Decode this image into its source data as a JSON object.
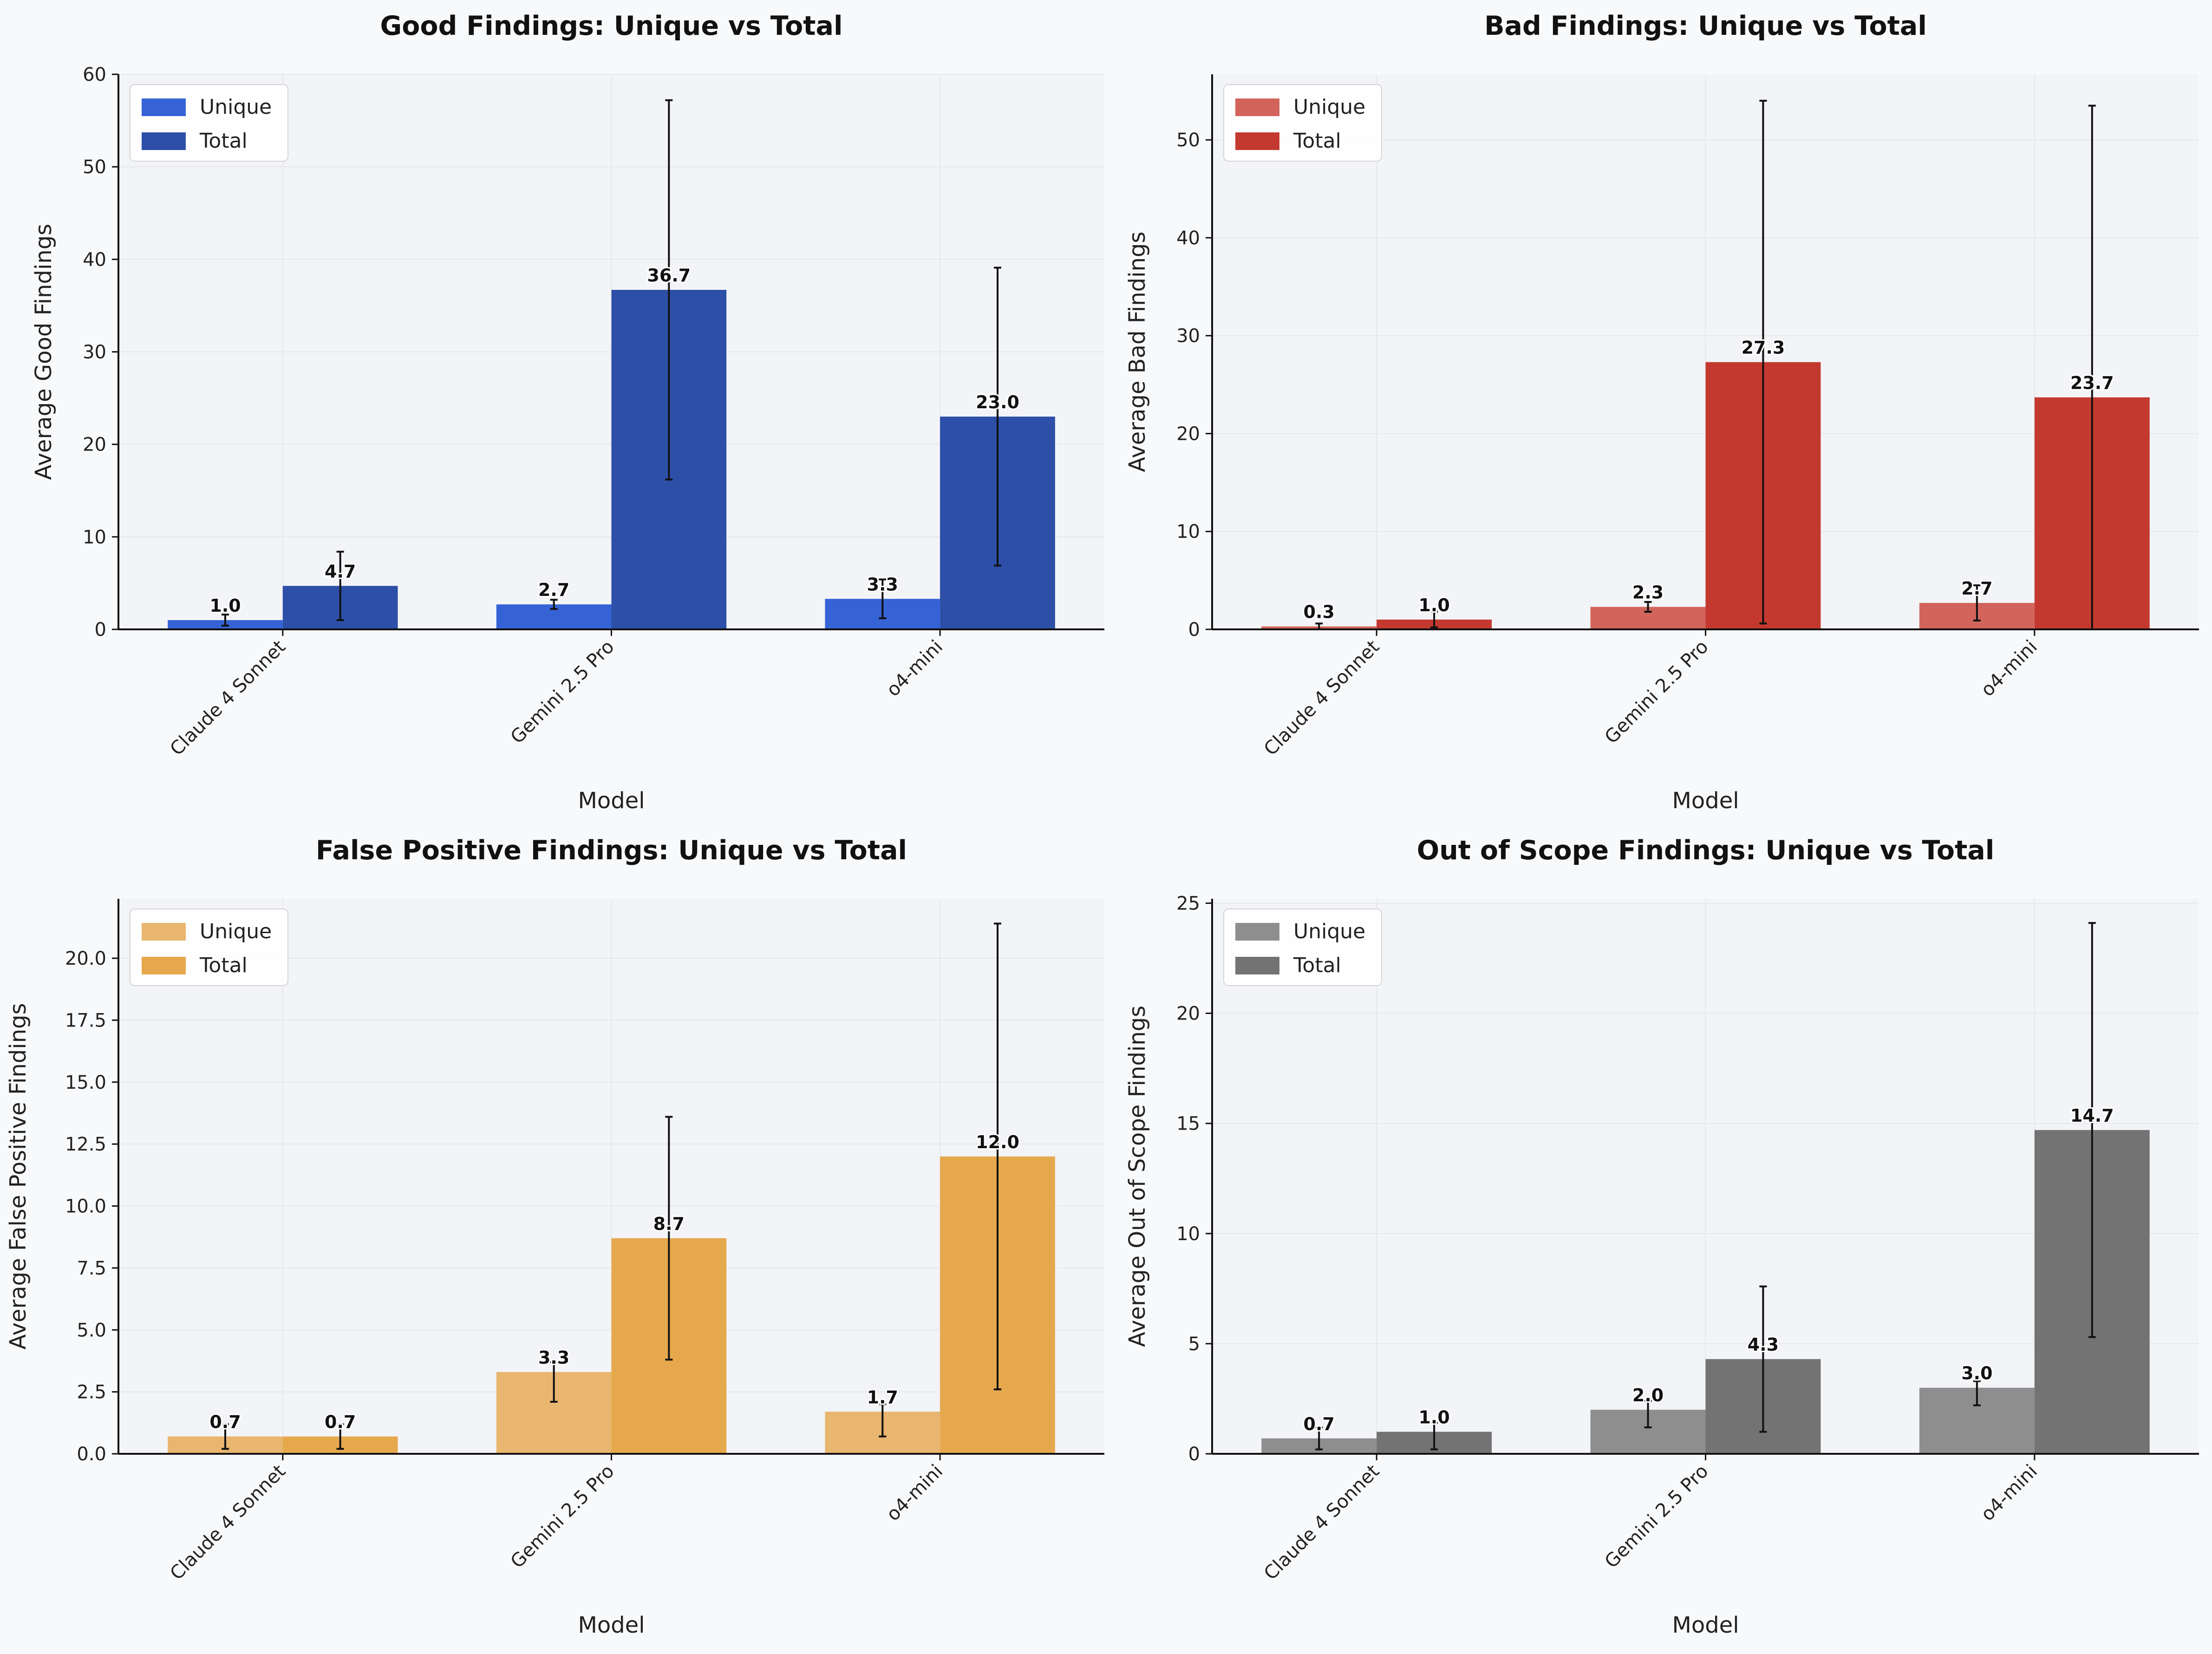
{
  "chart_data": [
    {
      "type": "bar",
      "title": "Good Findings: Unique vs Total",
      "xlabel": "Model",
      "ylabel": "Average Good Findings",
      "categories": [
        "Claude 4 Sonnet",
        "Gemini 2.5 Pro",
        "o4-mini"
      ],
      "ylim": [
        0,
        60
      ],
      "yticks": [
        0,
        10,
        20,
        30,
        40,
        50,
        60
      ],
      "ytick_labels": [
        "0",
        "10",
        "20",
        "30",
        "40",
        "50",
        "60"
      ],
      "legend_position": "top-left",
      "series": [
        {
          "name": "Unique",
          "color": "#3563d6",
          "values": [
            1.0,
            2.7,
            3.3
          ],
          "value_labels": [
            "1.0",
            "2.7",
            "3.3"
          ],
          "err_low": [
            0.4,
            2.2,
            1.2
          ],
          "err_high": [
            1.6,
            3.2,
            5.4
          ]
        },
        {
          "name": "Total",
          "color": "#2d4fa8",
          "values": [
            4.7,
            36.7,
            23.0
          ],
          "value_labels": [
            "4.7",
            "36.7",
            "23.0"
          ],
          "err_low": [
            1.0,
            16.2,
            6.9
          ],
          "err_high": [
            8.4,
            57.2,
            39.1
          ]
        }
      ]
    },
    {
      "type": "bar",
      "title": "Bad Findings: Unique vs Total",
      "xlabel": "Model",
      "ylabel": "Average Bad Findings",
      "categories": [
        "Claude 4 Sonnet",
        "Gemini 2.5 Pro",
        "o4-mini"
      ],
      "ylim": [
        0,
        56.7
      ],
      "yticks": [
        0,
        10,
        20,
        30,
        40,
        50
      ],
      "ytick_labels": [
        "0",
        "10",
        "20",
        "30",
        "40",
        "50"
      ],
      "legend_position": "top-left",
      "series": [
        {
          "name": "Unique",
          "color": "#d2645c",
          "values": [
            0.3,
            2.3,
            2.7
          ],
          "value_labels": [
            "0.3",
            "2.3",
            "2.7"
          ],
          "err_low": [
            0.0,
            1.8,
            0.9
          ],
          "err_high": [
            0.6,
            2.8,
            4.5
          ]
        },
        {
          "name": "Total",
          "color": "#c4392f",
          "values": [
            1.0,
            27.3,
            23.7
          ],
          "value_labels": [
            "1.0",
            "27.3",
            "23.7"
          ],
          "err_low": [
            0.2,
            0.6,
            0.0
          ],
          "err_high": [
            1.8,
            54.0,
            53.5
          ]
        }
      ]
    },
    {
      "type": "bar",
      "title": "False Positive Findings: Unique vs Total",
      "xlabel": "Model",
      "ylabel": "Average False Positive Findings",
      "categories": [
        "Claude 4 Sonnet",
        "Gemini 2.5 Pro",
        "o4-mini"
      ],
      "ylim": [
        0,
        22.4
      ],
      "yticks": [
        0,
        2.5,
        5.0,
        7.5,
        10.0,
        12.5,
        15.0,
        17.5,
        20.0
      ],
      "ytick_labels": [
        "0.0",
        "2.5",
        "5.0",
        "7.5",
        "10.0",
        "12.5",
        "15.0",
        "17.5",
        "20.0"
      ],
      "legend_position": "top-left",
      "series": [
        {
          "name": "Unique",
          "color": "#e8b66e",
          "values": [
            0.7,
            3.3,
            1.7
          ],
          "value_labels": [
            "0.7",
            "3.3",
            "1.7"
          ],
          "err_low": [
            0.2,
            2.1,
            0.7
          ],
          "err_high": [
            1.2,
            3.7,
            2.0
          ]
        },
        {
          "name": "Total",
          "color": "#e6a84c",
          "values": [
            0.7,
            8.7,
            12.0
          ],
          "value_labels": [
            "0.7",
            "8.7",
            "12.0"
          ],
          "err_low": [
            0.2,
            3.8,
            2.6
          ],
          "err_high": [
            1.2,
            13.6,
            21.4
          ]
        }
      ]
    },
    {
      "type": "bar",
      "title": "Out of Scope Findings: Unique vs Total",
      "xlabel": "Model",
      "ylabel": "Average Out of Scope Findings",
      "categories": [
        "Claude 4 Sonnet",
        "Gemini 2.5 Pro",
        "o4-mini"
      ],
      "ylim": [
        0,
        25.2
      ],
      "yticks": [
        0,
        5,
        10,
        15,
        20,
        25
      ],
      "ytick_labels": [
        "0",
        "5",
        "10",
        "15",
        "20",
        "25"
      ],
      "legend_position": "top-left",
      "series": [
        {
          "name": "Unique",
          "color": "#8e8e8e",
          "values": [
            0.7,
            2.0,
            3.0
          ],
          "value_labels": [
            "0.7",
            "2.0",
            "3.0"
          ],
          "err_low": [
            0.2,
            1.2,
            2.2
          ],
          "err_high": [
            1.2,
            2.4,
            3.3
          ]
        },
        {
          "name": "Total",
          "color": "#737373",
          "values": [
            1.0,
            4.3,
            14.7
          ],
          "value_labels": [
            "1.0",
            "4.3",
            "14.7"
          ],
          "err_low": [
            0.2,
            1.0,
            5.3
          ],
          "err_high": [
            1.4,
            7.6,
            24.1
          ]
        }
      ]
    }
  ]
}
